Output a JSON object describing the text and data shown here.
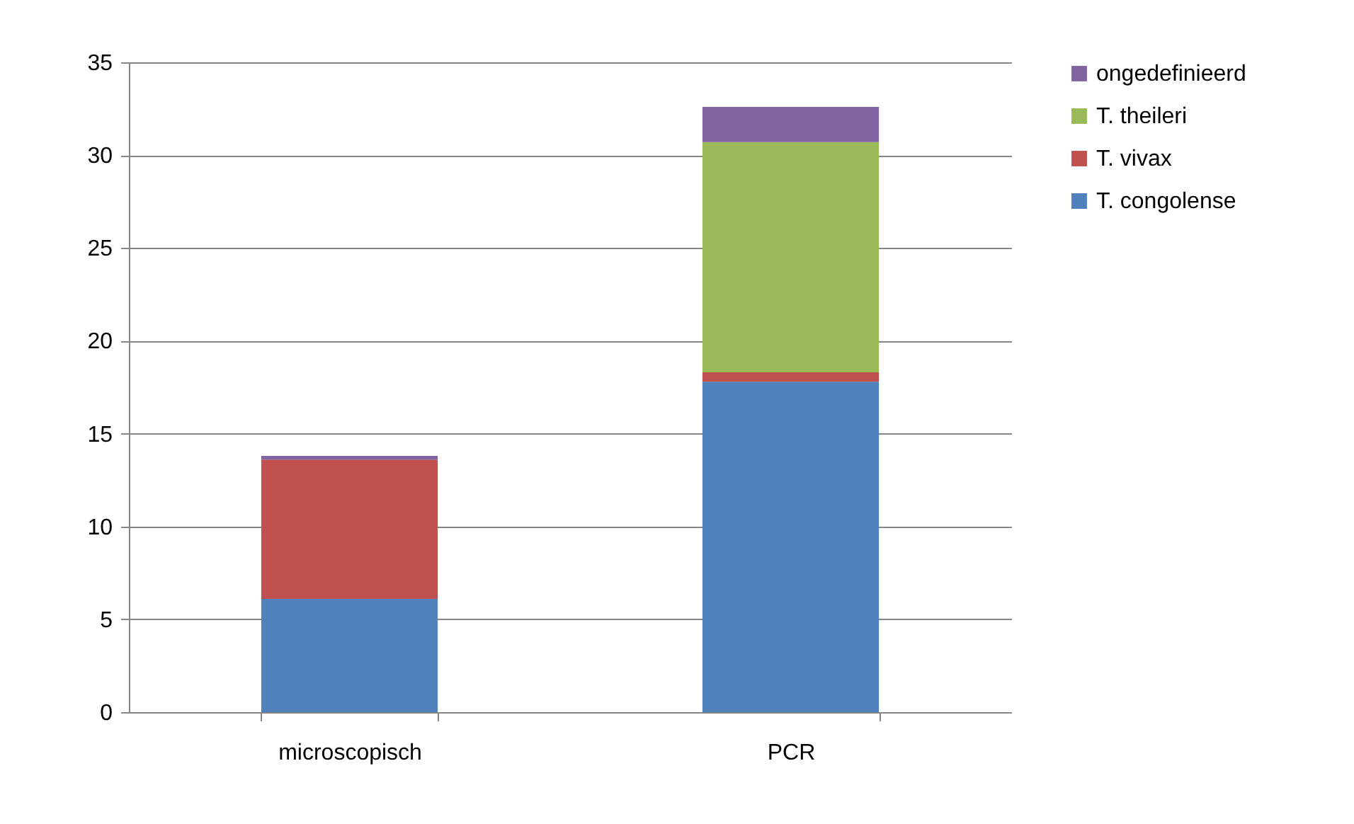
{
  "chart_data": {
    "type": "bar",
    "stacked": true,
    "categories": [
      "microscopisch",
      "PCR"
    ],
    "series": [
      {
        "name": "T. congolense",
        "color": "#4f81bd",
        "values": [
          6.1,
          17.8
        ]
      },
      {
        "name": "T. vivax",
        "color": "#c0504d",
        "values": [
          7.5,
          0.5
        ]
      },
      {
        "name": "T. theileri",
        "color": "#9bbb59",
        "values": [
          0,
          12.4
        ]
      },
      {
        "name": "ongedefinieerd",
        "color": "#8064a2",
        "values": [
          0.2,
          1.9
        ]
      }
    ],
    "ylim": [
      0,
      35
    ],
    "yticks": [
      0,
      5,
      10,
      15,
      20,
      25,
      30,
      35
    ],
    "grid": "y",
    "legend": "right"
  }
}
